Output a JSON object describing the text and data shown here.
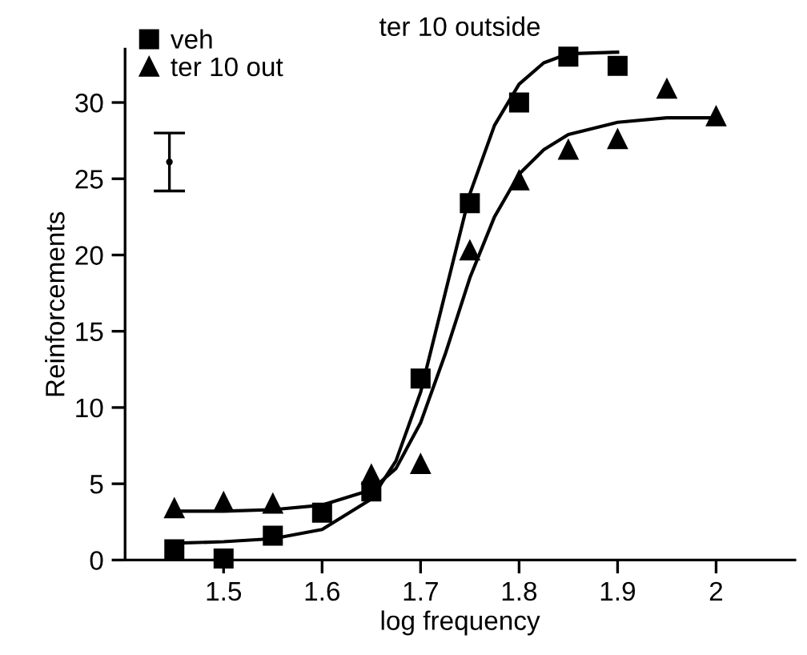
{
  "chart_data": {
    "type": "scatter",
    "title": "ter 10 outside",
    "xlabel": "log frequency",
    "ylabel": "Reinforcements",
    "xlim": [
      1.4,
      2.08
    ],
    "xticks": [
      1.5,
      1.6,
      1.7,
      1.8,
      1.9,
      2
    ],
    "ylim": [
      0,
      33.5
    ],
    "yticks": [
      0,
      5,
      10,
      15,
      20,
      25,
      30
    ],
    "grid": false,
    "legend": "top left",
    "series": [
      {
        "name": "veh",
        "marker": "square",
        "color": "#000000",
        "x": [
          1.45,
          1.5,
          1.55,
          1.6,
          1.65,
          1.7,
          1.75,
          1.8,
          1.85,
          1.9
        ],
        "values": [
          0.7,
          0.1,
          1.6,
          3.1,
          4.5,
          11.9,
          23.4,
          30,
          33,
          32.4
        ]
      },
      {
        "name": "ter 10 out",
        "marker": "triangle",
        "color": "#000000",
        "x": [
          1.45,
          1.5,
          1.55,
          1.65,
          1.7,
          1.75,
          1.8,
          1.85,
          1.9,
          1.95,
          2.0
        ],
        "values": [
          3.4,
          3.8,
          3.7,
          5.6,
          6.3,
          20.3,
          24.9,
          26.9,
          27.6,
          30.9,
          29.1
        ]
      },
      {
        "type": "line",
        "marker": "none",
        "line_style": "solid",
        "color": "#000000",
        "x": [
          1.45,
          1.5,
          1.55,
          1.6,
          1.65,
          1.675,
          1.7,
          1.725,
          1.75,
          1.775,
          1.8,
          1.825,
          1.85,
          1.9
        ],
        "values": [
          1.1,
          1.2,
          1.4,
          2.0,
          4.0,
          6.5,
          11,
          17.5,
          24,
          28.5,
          31.2,
          32.6,
          33.2,
          33.3
        ]
      },
      {
        "type": "line",
        "marker": "none",
        "line_style": "solid",
        "color": "#000000",
        "x": [
          1.45,
          1.5,
          1.55,
          1.6,
          1.65,
          1.675,
          1.7,
          1.725,
          1.75,
          1.775,
          1.8,
          1.825,
          1.85,
          1.9,
          1.95,
          2.0
        ],
        "values": [
          3.2,
          3.2,
          3.3,
          3.6,
          4.6,
          6.0,
          9.0,
          13.5,
          18.5,
          22.5,
          25.3,
          26.9,
          27.9,
          28.7,
          29.0,
          29.0
        ]
      },
      {
        "marker": "none",
        "color": "#000000",
        "x": [
          1.445
        ],
        "values": [
          26.1
        ],
        "errors": [
          [
            24.2,
            28.0
          ]
        ]
      }
    ]
  }
}
